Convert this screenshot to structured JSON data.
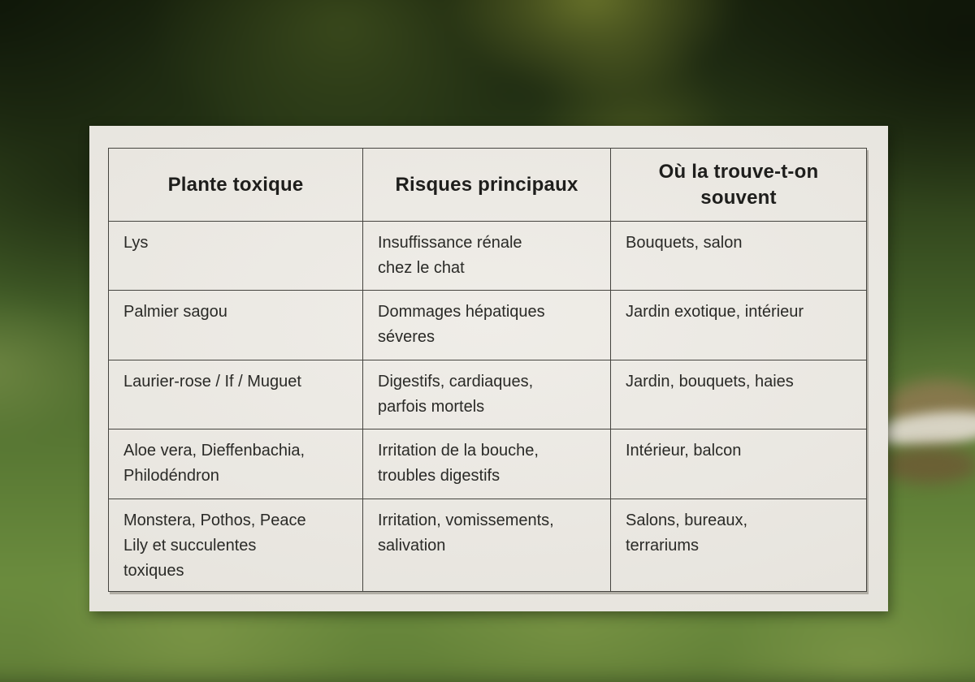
{
  "scene": {
    "description_colors": {
      "card_bg": "#eae7e0",
      "table_border": "#45443f",
      "header_text": "#1e1e1c",
      "body_text": "#2a2a27",
      "background_top_green": "#1b2610",
      "background_bottom_green": "#6b8c3e"
    }
  },
  "card": {
    "table": {
      "headers": [
        "Plante toxique",
        "Risques principaux",
        "Où la trouve-t-on souvent"
      ],
      "rows": [
        [
          "Lys",
          "Insuffissance rénale\nchez le chat",
          "Bouquets, salon"
        ],
        [
          "Palmier sagou",
          "Dommages hépatiques\nséveres",
          "Jardin exotique, intérieur"
        ],
        [
          "Laurier-rose / If / Muguet",
          "Digestifs, cardiaques,\nparfois mortels",
          "Jardin, bouquets, haies"
        ],
        [
          "Aloe vera, Dieffenbachia,\nPhilodéndron",
          "Irritation de la bouche,\ntroubles digestifs",
          "Intérieur, balcon"
        ],
        [
          "Monstera, Pothos, Peace\nLily et succulentes\ntoxiques",
          "Irritation, vomissements,\nsalivation",
          "Salons, bureaux,\nterrariums"
        ]
      ]
    }
  }
}
